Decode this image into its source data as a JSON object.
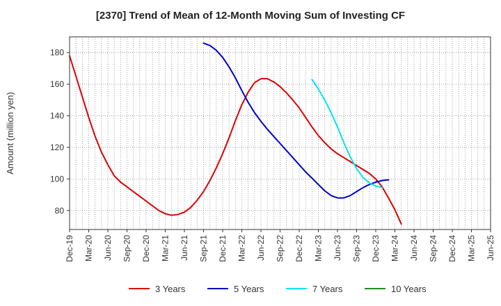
{
  "chart_data": {
    "type": "line",
    "title": "[2370]  Trend of Mean of 12-Month Moving Sum of Investing CF",
    "xlabel": "",
    "ylabel": "Amount (million yen)",
    "ylim": [
      68,
      190
    ],
    "yticks": [
      80,
      100,
      120,
      140,
      160,
      180
    ],
    "xlim": [
      0,
      66
    ],
    "x_tick_positions": [
      0,
      3,
      6,
      9,
      12,
      15,
      18,
      21,
      24,
      27,
      30,
      33,
      36,
      39,
      42,
      45,
      48,
      51,
      54,
      57,
      60,
      63,
      66
    ],
    "categories": [
      "Dec-19",
      "Mar-20",
      "Jun-20",
      "Sep-20",
      "Dec-20",
      "Mar-21",
      "Jun-21",
      "Sep-21",
      "Dec-21",
      "Mar-22",
      "Jun-22",
      "Sep-22",
      "Dec-22",
      "Mar-23",
      "Jun-23",
      "Sep-23",
      "Dec-23",
      "Mar-24",
      "Jun-24",
      "Sep-24",
      "Dec-24",
      "Mar-25",
      "Jun-25"
    ],
    "grid": true,
    "legend_position": "bottom",
    "series": [
      {
        "name": "3 Years",
        "color": "#dd0000",
        "points": [
          [
            0,
            178
          ],
          [
            1,
            165
          ],
          [
            2,
            152
          ],
          [
            3,
            139
          ],
          [
            4,
            127
          ],
          [
            5,
            117
          ],
          [
            6,
            109
          ],
          [
            7,
            102
          ],
          [
            8,
            98
          ],
          [
            9,
            95
          ],
          [
            10,
            92
          ],
          [
            11,
            89
          ],
          [
            12,
            86
          ],
          [
            13,
            83
          ],
          [
            14,
            80
          ],
          [
            15,
            78
          ],
          [
            16,
            77
          ],
          [
            17,
            77.5
          ],
          [
            18,
            79
          ],
          [
            19,
            82
          ],
          [
            20,
            86.5
          ],
          [
            21,
            92
          ],
          [
            22,
            99
          ],
          [
            23,
            107
          ],
          [
            24,
            116
          ],
          [
            25,
            126
          ],
          [
            26,
            137
          ],
          [
            27,
            147
          ],
          [
            28,
            155
          ],
          [
            29,
            161
          ],
          [
            30,
            163.5
          ],
          [
            31,
            163.5
          ],
          [
            32,
            161.5
          ],
          [
            33,
            158.5
          ],
          [
            34,
            154.5
          ],
          [
            35,
            150
          ],
          [
            36,
            145
          ],
          [
            37,
            139
          ],
          [
            38,
            133
          ],
          [
            39,
            127.5
          ],
          [
            40,
            123
          ],
          [
            41,
            119
          ],
          [
            42,
            116
          ],
          [
            43,
            113.5
          ],
          [
            44,
            111
          ],
          [
            45,
            108.5
          ],
          [
            46,
            106
          ],
          [
            47,
            103.5
          ],
          [
            48,
            100
          ],
          [
            49,
            95
          ],
          [
            50,
            88
          ],
          [
            51,
            80.5
          ],
          [
            52,
            71.5
          ]
        ]
      },
      {
        "name": "5 Years",
        "color": "#0000cc",
        "points": [
          [
            21,
            186
          ],
          [
            22,
            184.5
          ],
          [
            23,
            181.5
          ],
          [
            24,
            177
          ],
          [
            25,
            171
          ],
          [
            26,
            164
          ],
          [
            27,
            156
          ],
          [
            28,
            148.5
          ],
          [
            29,
            142
          ],
          [
            30,
            136.5
          ],
          [
            31,
            131.5
          ],
          [
            32,
            127
          ],
          [
            33,
            122.5
          ],
          [
            34,
            118
          ],
          [
            35,
            113.5
          ],
          [
            36,
            109
          ],
          [
            37,
            104.5
          ],
          [
            38,
            100.5
          ],
          [
            39,
            96.5
          ],
          [
            40,
            92.5
          ],
          [
            41,
            89.5
          ],
          [
            42,
            88
          ],
          [
            43,
            88
          ],
          [
            44,
            89.5
          ],
          [
            45,
            92
          ],
          [
            46,
            94.5
          ],
          [
            47,
            96.5
          ],
          [
            48,
            98
          ],
          [
            49,
            99
          ],
          [
            50,
            99.5
          ]
        ]
      },
      {
        "name": "7 Years",
        "color": "#00e5ee",
        "points": [
          [
            38,
            163
          ],
          [
            39,
            157
          ],
          [
            40,
            150
          ],
          [
            41,
            142
          ],
          [
            42,
            133
          ],
          [
            43,
            123
          ],
          [
            44,
            114
          ],
          [
            45,
            106.5
          ],
          [
            46,
            101
          ],
          [
            47,
            97.5
          ],
          [
            48,
            95.5
          ],
          [
            49,
            94.5
          ]
        ]
      },
      {
        "name": "10 Years",
        "color": "#228b22",
        "points": []
      }
    ]
  }
}
